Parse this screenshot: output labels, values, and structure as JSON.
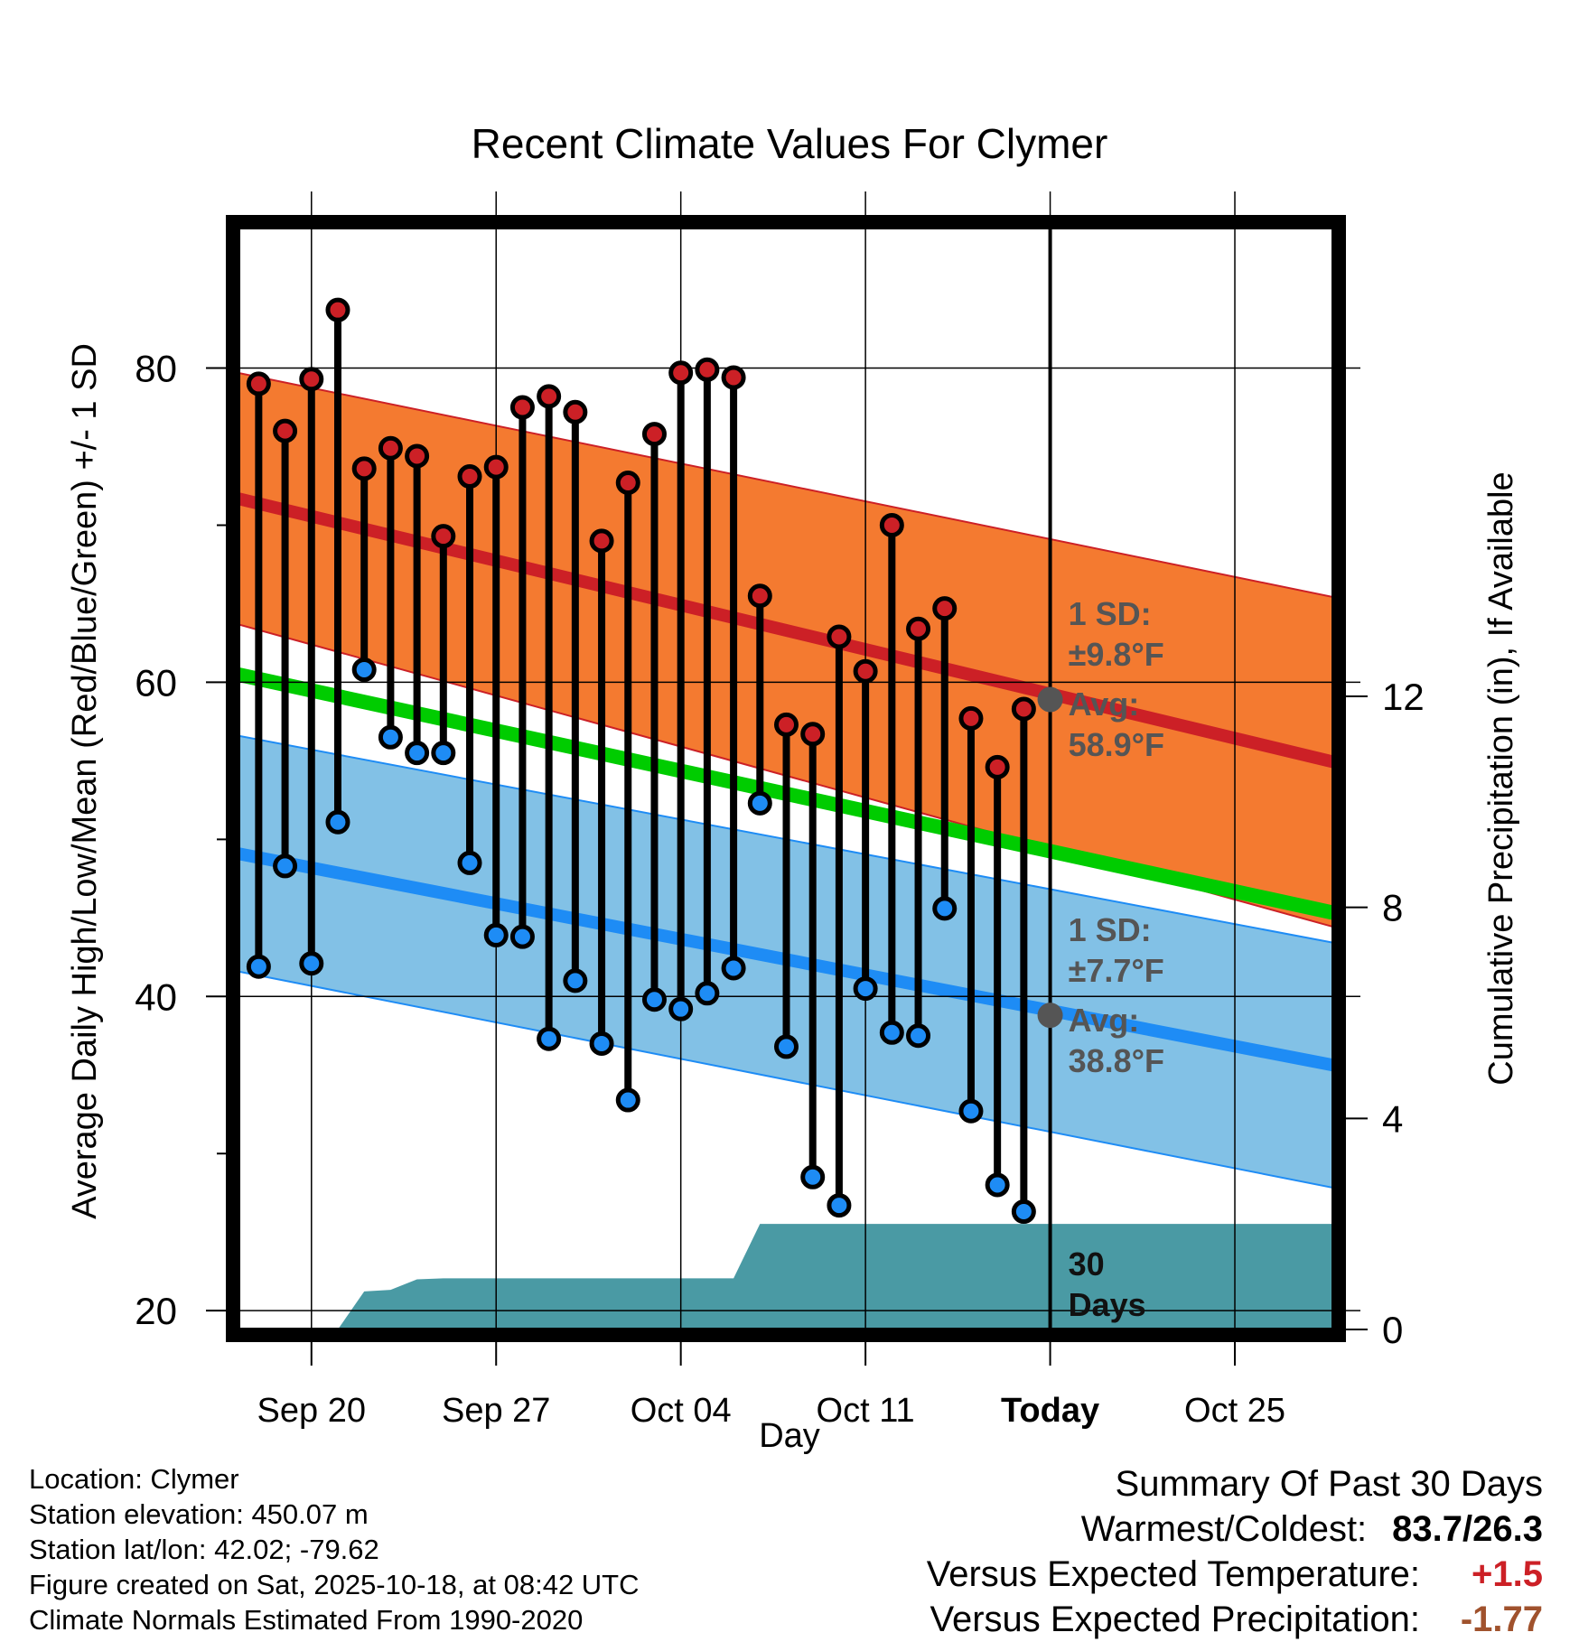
{
  "chart_data": {
    "type": "line",
    "title": "Recent Climate Values For Clymer",
    "xlabel": "Day",
    "ylabel": "Average Daily High/Low/Mean (Red/Blue/Green) +/- 1 SD",
    "y2label": "Cumulative Precipitation (in), If Available",
    "ylim": [
      18.8,
      89
    ],
    "y2lim": [
      0,
      20.9
    ],
    "xlim": [
      -2.8,
      38.8
    ],
    "x_ticks": [
      {
        "day": 0,
        "label": "Sep 20"
      },
      {
        "day": 7,
        "label": "Sep 27"
      },
      {
        "day": 14,
        "label": "Oct 04"
      },
      {
        "day": 21,
        "label": "Oct 11"
      },
      {
        "day": 28,
        "label": "Today"
      },
      {
        "day": 35,
        "label": "Oct 25"
      }
    ],
    "y_ticks": [
      20,
      40,
      60,
      80
    ],
    "y_minor_ticks": [
      30,
      50,
      70
    ],
    "y2_ticks": [
      0,
      4,
      8,
      12
    ],
    "today_day": 28,
    "normal_high": {
      "start": 71.7,
      "end": 54.9,
      "sd_start": 8.0,
      "sd_end": 10.5
    },
    "normal_low": {
      "start": 49.1,
      "end": 35.6,
      "sd_start": 7.5,
      "sd_end": 7.8
    },
    "normal_mean": {
      "start": 60.5,
      "end": 45.3
    },
    "daily_highs": [
      {
        "day": -2,
        "value": 79.0
      },
      {
        "day": -1,
        "value": 76.0
      },
      {
        "day": 0,
        "value": 79.3
      },
      {
        "day": 1,
        "value": 83.7
      },
      {
        "day": 2,
        "value": 73.6
      },
      {
        "day": 3,
        "value": 74.9
      },
      {
        "day": 4,
        "value": 74.4
      },
      {
        "day": 5,
        "value": 69.3
      },
      {
        "day": 6,
        "value": 73.1
      },
      {
        "day": 7,
        "value": 73.7
      },
      {
        "day": 8,
        "value": 77.5
      },
      {
        "day": 9,
        "value": 78.2
      },
      {
        "day": 10,
        "value": 77.2
      },
      {
        "day": 11,
        "value": 69.0
      },
      {
        "day": 12,
        "value": 72.7
      },
      {
        "day": 13,
        "value": 75.8
      },
      {
        "day": 14,
        "value": 79.7
      },
      {
        "day": 15,
        "value": 79.9
      },
      {
        "day": 16,
        "value": 79.4
      },
      {
        "day": 17,
        "value": 65.5
      },
      {
        "day": 18,
        "value": 57.3
      },
      {
        "day": 19,
        "value": 56.7
      },
      {
        "day": 20,
        "value": 62.9
      },
      {
        "day": 21,
        "value": 60.7
      },
      {
        "day": 22,
        "value": 70.0
      },
      {
        "day": 23,
        "value": 63.4
      },
      {
        "day": 24,
        "value": 64.7
      },
      {
        "day": 25,
        "value": 57.7
      },
      {
        "day": 26,
        "value": 54.6
      },
      {
        "day": 27,
        "value": 58.3
      }
    ],
    "daily_lows": [
      {
        "day": -2,
        "value": 41.9
      },
      {
        "day": -1,
        "value": 48.3
      },
      {
        "day": 0,
        "value": 42.1
      },
      {
        "day": 1,
        "value": 51.1
      },
      {
        "day": 2,
        "value": 60.8
      },
      {
        "day": 3,
        "value": 56.5
      },
      {
        "day": 4,
        "value": 55.5
      },
      {
        "day": 5,
        "value": 55.5
      },
      {
        "day": 6,
        "value": 48.5
      },
      {
        "day": 7,
        "value": 43.9
      },
      {
        "day": 8,
        "value": 43.8
      },
      {
        "day": 9,
        "value": 37.3
      },
      {
        "day": 10,
        "value": 41.0
      },
      {
        "day": 11,
        "value": 37.0
      },
      {
        "day": 12,
        "value": 33.4
      },
      {
        "day": 13,
        "value": 39.8
      },
      {
        "day": 14,
        "value": 39.2
      },
      {
        "day": 15,
        "value": 40.2
      },
      {
        "day": 16,
        "value": 41.8
      },
      {
        "day": 17,
        "value": 52.3
      },
      {
        "day": 18,
        "value": 36.8
      },
      {
        "day": 19,
        "value": 28.5
      },
      {
        "day": 20,
        "value": 26.7
      },
      {
        "day": 21,
        "value": 40.5
      },
      {
        "day": 22,
        "value": 37.7
      },
      {
        "day": 23,
        "value": 37.5
      },
      {
        "day": 24,
        "value": 45.6
      },
      {
        "day": 25,
        "value": 32.7
      },
      {
        "day": 26,
        "value": 28.0
      },
      {
        "day": 27,
        "value": 26.3
      }
    ],
    "precip_cumulative": [
      {
        "day": 1,
        "value": 0.0
      },
      {
        "day": 2,
        "value": 0.72
      },
      {
        "day": 3,
        "value": 0.75
      },
      {
        "day": 4,
        "value": 0.95
      },
      {
        "day": 5,
        "value": 0.97
      },
      {
        "day": 16,
        "value": 0.97
      },
      {
        "day": 17,
        "value": 2.0
      },
      {
        "day": 38.8,
        "value": 2.0
      }
    ],
    "annotations": {
      "high_sd": "1 SD:",
      "high_sd_value": "±9.8°F",
      "high_avg": "Avg:",
      "high_avg_value": "58.9°F",
      "high_avg_today": 58.9,
      "low_sd": "1 SD:",
      "low_sd_value": "±7.7°F",
      "low_avg": "Avg:",
      "low_avg_value": "38.8°F",
      "low_avg_today": 38.8,
      "precip_days_1": "30",
      "precip_days_2": "Days"
    },
    "colors": {
      "high_band": "#f47a30",
      "high_line": "#cc2026",
      "low_band": "#82c1e6",
      "low_line": "#1e8cf5",
      "mean_line": "#00cc00",
      "precip": "#4a9aa4",
      "high_dot": "#cc2026",
      "low_dot": "#1e8cf5",
      "annot": "#555555",
      "avg_dot": "#555555"
    }
  },
  "info": {
    "location": "Location: Clymer",
    "elevation": "Station elevation: 450.07 m",
    "latlon": "Station lat/lon: 42.02; -79.62",
    "created": "Figure created on Sat, 2025-10-18, at 08:42 UTC",
    "normals": "Climate Normals Estimated From 1990-2020"
  },
  "summary": {
    "title": "Summary Of Past 30 Days",
    "warmest_label": "Warmest/Coldest:",
    "warmest_value": "83.7/26.3",
    "temp_label": "Versus Expected Temperature:",
    "temp_value": "+1.5",
    "temp_color": "#cc2026",
    "precip_label": "Versus Expected Precipitation:",
    "precip_value": "-1.77",
    "precip_color": "#a0522d"
  }
}
